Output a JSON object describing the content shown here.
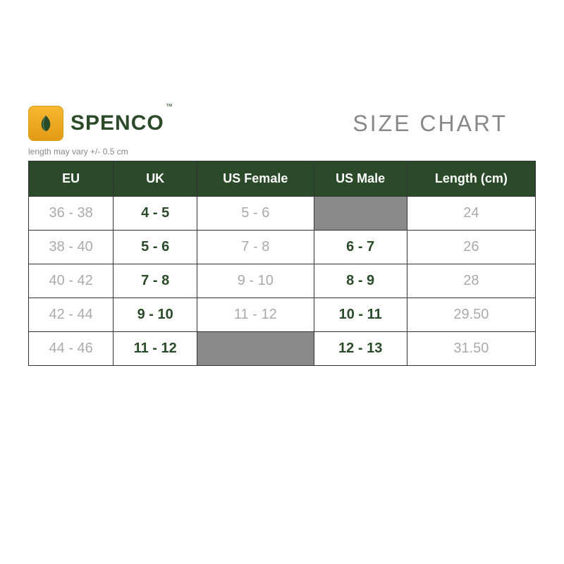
{
  "brand": {
    "name": "SPENCO",
    "trademark": "™"
  },
  "title": "SIZE CHART",
  "note": "length may vary +/- 0.5 cm",
  "table": {
    "columns": [
      "EU",
      "UK",
      "US Female",
      "US Male",
      "Length (cm)"
    ],
    "column_styles": [
      "muted",
      "strong",
      "muted",
      "strong",
      "muted"
    ],
    "rows": [
      [
        "36 - 38",
        "4 - 5",
        "5 - 6",
        null,
        "24"
      ],
      [
        "38 - 40",
        "5 - 6",
        "7 - 8",
        "6 - 7",
        "26"
      ],
      [
        "40 - 42",
        "7 - 8",
        "9 - 10",
        "8 - 9",
        "28"
      ],
      [
        "42 - 44",
        "9 - 10",
        "11 - 12",
        "10 - 11",
        "29.50"
      ],
      [
        "44 - 46",
        "11 - 12",
        null,
        "12 - 13",
        "31.50"
      ]
    ]
  },
  "styling": {
    "header_bg": "#2b4a2a",
    "header_fg": "#ffffff",
    "muted_color": "#aaaaaa",
    "strong_color": "#2b4a2a",
    "blank_bg": "#8a8a8a",
    "border_color": "#333333",
    "logo_gradient_top": "#f7b731",
    "logo_gradient_bottom": "#e39b17",
    "title_color": "#888888"
  }
}
